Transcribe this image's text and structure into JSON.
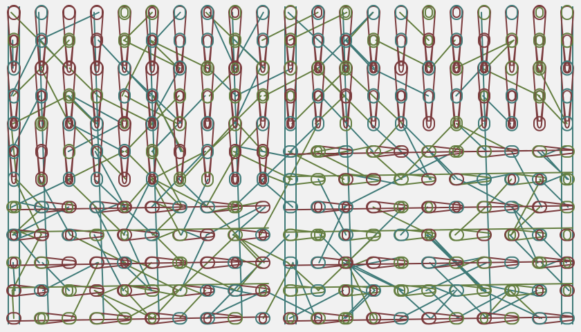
{
  "pattern": {
    "background_color": "#f1f1f1",
    "stroke_colors": {
      "red": "#7a3a3c",
      "green": "#647e40",
      "teal": "#3f7a78"
    },
    "grid": {
      "columns": 21,
      "rows": 12
    },
    "regions": [
      {
        "name": "left-vertical-block",
        "columns": [
          0,
          9
        ],
        "rows": [
          0,
          6
        ],
        "dominant_color": "red",
        "orientation": "vertical"
      },
      {
        "name": "right-vertical-block",
        "columns": [
          10,
          20
        ],
        "rows": [
          0,
          4
        ],
        "dominant_color": "red",
        "orientation": "vertical"
      },
      {
        "name": "right-horizontal-band",
        "columns": [
          10,
          20
        ],
        "rows": [
          5,
          11
        ],
        "dominant_color": "green",
        "orientation": "horizontal"
      },
      {
        "name": "bottom-horizontal-band",
        "columns": [
          0,
          9
        ],
        "rows": [
          7,
          11
        ],
        "dominant_color": "red",
        "orientation": "horizontal"
      }
    ]
  }
}
